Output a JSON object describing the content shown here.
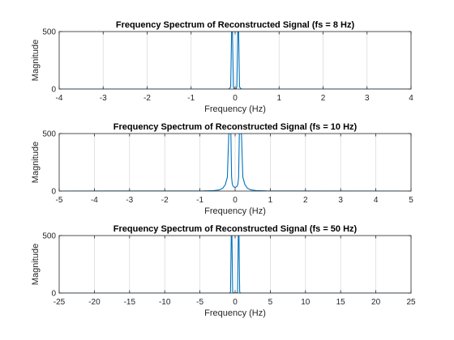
{
  "chart_data": [
    {
      "type": "line",
      "title": "Frequency Spectrum of Reconstructed Signal (fs = 8 Hz)",
      "xlabel": "Frequency (Hz)",
      "ylabel": "Magnitude",
      "xlim": [
        -4,
        4
      ],
      "ylim": [
        0,
        500
      ],
      "xticks": [
        -4,
        -3,
        -2,
        -1,
        0,
        1,
        2,
        3,
        4
      ],
      "yticks": [
        0,
        500
      ],
      "grid": "vertical",
      "color": "#0072BD",
      "series": [
        {
          "x": [
            -4,
            -0.16,
            -0.13,
            -0.1,
            -0.08,
            -0.06,
            -0.04,
            -0.02,
            0,
            0.02,
            0.04,
            0.06,
            0.08,
            0.1,
            0.13,
            0.16,
            4
          ],
          "y": [
            0,
            0,
            3,
            20,
            500,
            500,
            20,
            3,
            1,
            3,
            20,
            500,
            500,
            20,
            3,
            0,
            0
          ]
        }
      ]
    },
    {
      "type": "line",
      "title": "Frequency Spectrum of Reconstructed Signal (fs = 10 Hz)",
      "xlabel": "Frequency (Hz)",
      "ylabel": "Magnitude",
      "xlim": [
        -5,
        5
      ],
      "ylim": [
        0,
        500
      ],
      "xticks": [
        -5,
        -4,
        -3,
        -2,
        -1,
        0,
        1,
        2,
        3,
        4,
        5
      ],
      "yticks": [
        0,
        500
      ],
      "grid": "vertical",
      "color": "#0072BD",
      "series": [
        {
          "x": [
            -5,
            -0.9,
            -0.6,
            -0.45,
            -0.35,
            -0.28,
            -0.22,
            -0.18,
            -0.15,
            -0.12,
            -0.1,
            -0.08,
            -0.05,
            0,
            0.05,
            0.08,
            0.1,
            0.12,
            0.15,
            0.18,
            0.22,
            0.28,
            0.35,
            0.45,
            0.6,
            0.9,
            5
          ],
          "y": [
            0,
            1,
            4,
            10,
            25,
            55,
            120,
            500,
            500,
            500,
            120,
            60,
            40,
            30,
            40,
            60,
            120,
            500,
            500,
            500,
            120,
            55,
            25,
            10,
            4,
            1,
            0
          ]
        }
      ]
    },
    {
      "type": "line",
      "title": "Frequency Spectrum of Reconstructed Signal (fs = 50 Hz)",
      "xlabel": "Frequency (Hz)",
      "ylabel": "Magnitude",
      "xlim": [
        -25,
        25
      ],
      "ylim": [
        0,
        500
      ],
      "xticks": [
        -25,
        -20,
        -15,
        -10,
        -5,
        0,
        5,
        10,
        15,
        20,
        25
      ],
      "yticks": [
        0,
        500
      ],
      "grid": "vertical",
      "color": "#0072BD",
      "series": [
        {
          "x": [
            -25,
            -0.8,
            -0.65,
            -0.55,
            -0.45,
            -0.35,
            -0.2,
            0,
            0.2,
            0.35,
            0.45,
            0.55,
            0.65,
            0.8,
            25
          ],
          "y": [
            0,
            0,
            8,
            500,
            500,
            8,
            1,
            0,
            1,
            8,
            500,
            500,
            8,
            0,
            0
          ]
        }
      ]
    }
  ]
}
